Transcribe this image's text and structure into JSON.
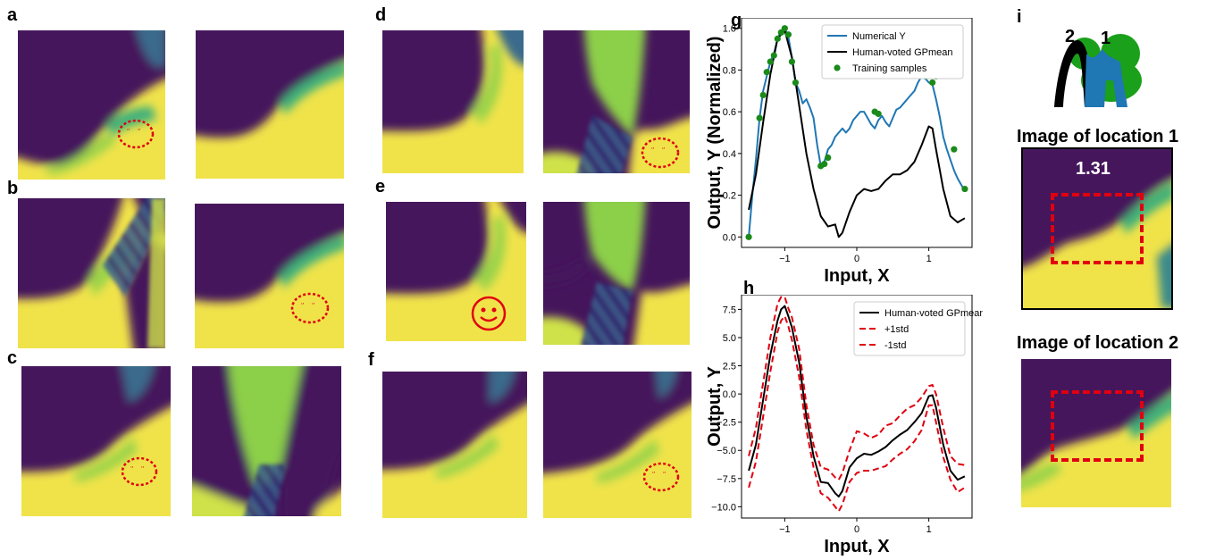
{
  "panels": {
    "a": "a",
    "b": "b",
    "c": "c",
    "d": "d",
    "e": "e",
    "f": "f",
    "g": "g",
    "h": "h",
    "i": "i"
  },
  "colors": {
    "yellow": "#f0e34a",
    "purple": "#45155c",
    "teal": "#2a9a8a",
    "green": "#8ccf48",
    "red": "#e0000f",
    "blue": "#1f77b4"
  },
  "chart_data": [
    {
      "id": "g",
      "type": "line",
      "xlabel": "Input, X",
      "ylabel": "Output, Y (Normalized)",
      "xlim": [
        -1.6,
        1.6
      ],
      "ylim": [
        -0.05,
        1.05
      ],
      "xticks": [
        -1,
        0,
        1
      ],
      "yticks": [
        0.0,
        0.2,
        0.4,
        0.6,
        0.8,
        1.0
      ],
      "legend": [
        "Numerical Y",
        "Human-voted GPmean",
        "Training samples"
      ],
      "series": [
        {
          "name": "Numerical Y",
          "x": [
            -1.5,
            -1.45,
            -1.4,
            -1.35,
            -1.3,
            -1.25,
            -1.2,
            -1.15,
            -1.1,
            -1.05,
            -1.0,
            -0.95,
            -0.9,
            -0.85,
            -0.8,
            -0.75,
            -0.7,
            -0.65,
            -0.6,
            -0.55,
            -0.5,
            -0.45,
            -0.4,
            -0.35,
            -0.3,
            -0.25,
            -0.2,
            -0.15,
            -0.1,
            -0.05,
            0.0,
            0.05,
            0.1,
            0.15,
            0.2,
            0.25,
            0.3,
            0.35,
            0.4,
            0.45,
            0.5,
            0.55,
            0.6,
            0.65,
            0.7,
            0.75,
            0.8,
            0.85,
            0.9,
            0.95,
            1.0,
            1.05,
            1.1,
            1.15,
            1.2,
            1.25,
            1.3,
            1.35,
            1.4,
            1.45,
            1.5
          ],
          "y": [
            0.0,
            0.2,
            0.37,
            0.57,
            0.7,
            0.77,
            0.84,
            0.88,
            0.95,
            0.99,
            1.0,
            0.96,
            0.86,
            0.74,
            0.7,
            0.64,
            0.66,
            0.62,
            0.57,
            0.44,
            0.34,
            0.36,
            0.42,
            0.44,
            0.48,
            0.5,
            0.52,
            0.5,
            0.52,
            0.56,
            0.58,
            0.6,
            0.6,
            0.57,
            0.54,
            0.52,
            0.56,
            0.58,
            0.55,
            0.53,
            0.57,
            0.61,
            0.62,
            0.64,
            0.66,
            0.68,
            0.7,
            0.74,
            0.77,
            0.76,
            0.74,
            0.73,
            0.66,
            0.58,
            0.48,
            0.42,
            0.37,
            0.32,
            0.28,
            0.25,
            0.22
          ]
        },
        {
          "name": "Human-voted GPmean",
          "x": [
            -1.5,
            -1.4,
            -1.3,
            -1.2,
            -1.1,
            -1.0,
            -0.9,
            -0.8,
            -0.7,
            -0.6,
            -0.5,
            -0.4,
            -0.3,
            -0.25,
            -0.2,
            -0.1,
            0.0,
            0.1,
            0.2,
            0.3,
            0.4,
            0.5,
            0.6,
            0.7,
            0.8,
            0.9,
            1.0,
            1.05,
            1.1,
            1.2,
            1.3,
            1.4,
            1.5
          ],
          "y": [
            0.13,
            0.3,
            0.55,
            0.78,
            0.95,
            0.99,
            0.86,
            0.63,
            0.4,
            0.23,
            0.1,
            0.05,
            0.06,
            0.0,
            0.02,
            0.12,
            0.2,
            0.23,
            0.22,
            0.23,
            0.27,
            0.3,
            0.3,
            0.32,
            0.36,
            0.44,
            0.53,
            0.52,
            0.42,
            0.23,
            0.1,
            0.07,
            0.09
          ]
        },
        {
          "name": "Training samples",
          "x": [
            -1.5,
            -1.35,
            -1.3,
            -1.25,
            -1.2,
            -1.15,
            -1.1,
            -1.05,
            -1.0,
            -0.95,
            -0.9,
            -0.85,
            -0.5,
            -0.45,
            -0.4,
            0.25,
            0.3,
            0.95,
            1.0,
            1.05,
            1.1,
            1.35,
            1.5
          ],
          "y": [
            0.0,
            0.57,
            0.68,
            0.79,
            0.84,
            0.87,
            0.95,
            0.98,
            1.0,
            0.97,
            0.84,
            0.74,
            0.34,
            0.35,
            0.38,
            0.6,
            0.59,
            0.77,
            0.78,
            0.74,
            0.77,
            0.42,
            0.23
          ]
        }
      ]
    },
    {
      "id": "h",
      "type": "line",
      "xlabel": "Input, X",
      "ylabel": "Output, Y",
      "xlim": [
        -1.6,
        1.6
      ],
      "ylim": [
        -11,
        8.8
      ],
      "xticks": [
        -1,
        0,
        1
      ],
      "yticks": [
        7.5,
        5.0,
        2.5,
        0.0,
        -2.5,
        -5.0,
        -7.5,
        -10.0
      ],
      "ytick_labels": [
        "7.5",
        "5.0",
        "2.5",
        "0.0",
        "−2.5",
        "−5.0",
        "−7.5",
        "−10.0"
      ],
      "legend": [
        "Human-voted GPmean",
        "+1std",
        "-1std"
      ],
      "series": [
        {
          "name": "Human-voted GPmean",
          "x": [
            -1.5,
            -1.4,
            -1.3,
            -1.2,
            -1.1,
            -1.05,
            -1.0,
            -0.95,
            -0.9,
            -0.8,
            -0.7,
            -0.6,
            -0.5,
            -0.4,
            -0.3,
            -0.25,
            -0.2,
            -0.1,
            0.0,
            0.1,
            0.2,
            0.3,
            0.4,
            0.5,
            0.6,
            0.7,
            0.8,
            0.9,
            1.0,
            1.05,
            1.1,
            1.2,
            1.3,
            1.4,
            1.5
          ],
          "y": [
            -6.8,
            -4.5,
            -0.5,
            3.5,
            6.5,
            7.5,
            7.8,
            6.9,
            5.9,
            2.8,
            -2.0,
            -5.5,
            -7.8,
            -7.9,
            -8.8,
            -9.1,
            -8.6,
            -6.5,
            -5.7,
            -5.3,
            -5.4,
            -5.1,
            -4.7,
            -4.1,
            -3.6,
            -3.2,
            -2.5,
            -1.7,
            -0.2,
            -0.1,
            -1.2,
            -4.5,
            -6.8,
            -7.6,
            -7.3
          ]
        },
        {
          "name": "+1std",
          "x": [
            -1.5,
            -1.4,
            -1.3,
            -1.2,
            -1.1,
            -1.05,
            -1.0,
            -0.95,
            -0.9,
            -0.8,
            -0.7,
            -0.6,
            -0.5,
            -0.4,
            -0.3,
            -0.25,
            -0.2,
            -0.1,
            0.0,
            0.1,
            0.2,
            0.3,
            0.4,
            0.5,
            0.6,
            0.7,
            0.8,
            0.9,
            1.0,
            1.05,
            1.1,
            1.2,
            1.3,
            1.4,
            1.5
          ],
          "y": [
            -5.5,
            -3.0,
            1.0,
            5.0,
            8.0,
            8.6,
            8.6,
            7.6,
            6.8,
            4.0,
            -1.0,
            -4.5,
            -6.5,
            -6.7,
            -7.4,
            -7.6,
            -7.0,
            -5.0,
            -3.3,
            -3.5,
            -3.9,
            -3.6,
            -2.8,
            -2.6,
            -1.9,
            -1.3,
            -1.0,
            -0.3,
            0.7,
            0.8,
            0.0,
            -3.0,
            -5.5,
            -6.2,
            -6.3
          ]
        },
        {
          "name": "-1std",
          "x": [
            -1.5,
            -1.4,
            -1.3,
            -1.2,
            -1.1,
            -1.05,
            -1.0,
            -0.95,
            -0.9,
            -0.8,
            -0.7,
            -0.6,
            -0.5,
            -0.4,
            -0.3,
            -0.25,
            -0.2,
            -0.1,
            0.0,
            0.1,
            0.2,
            0.3,
            0.4,
            0.5,
            0.6,
            0.7,
            0.8,
            0.9,
            1.0,
            1.05,
            1.1,
            1.2,
            1.3,
            1.4,
            1.5
          ],
          "y": [
            -8.3,
            -6.0,
            -2.0,
            2.0,
            5.5,
            6.5,
            6.9,
            6.0,
            4.8,
            1.5,
            -3.2,
            -6.5,
            -8.8,
            -9.2,
            -10.0,
            -10.4,
            -9.8,
            -7.8,
            -7.0,
            -6.8,
            -6.8,
            -6.6,
            -6.4,
            -5.8,
            -5.3,
            -4.9,
            -4.2,
            -3.2,
            -1.0,
            -1.0,
            -2.5,
            -5.6,
            -7.6,
            -8.7,
            -8.3
          ]
        }
      ]
    }
  ],
  "panel_i": {
    "label1": "2",
    "label2": "1",
    "title1": "Image of location 1",
    "title2": "Image of location 2",
    "value": "1.31"
  }
}
